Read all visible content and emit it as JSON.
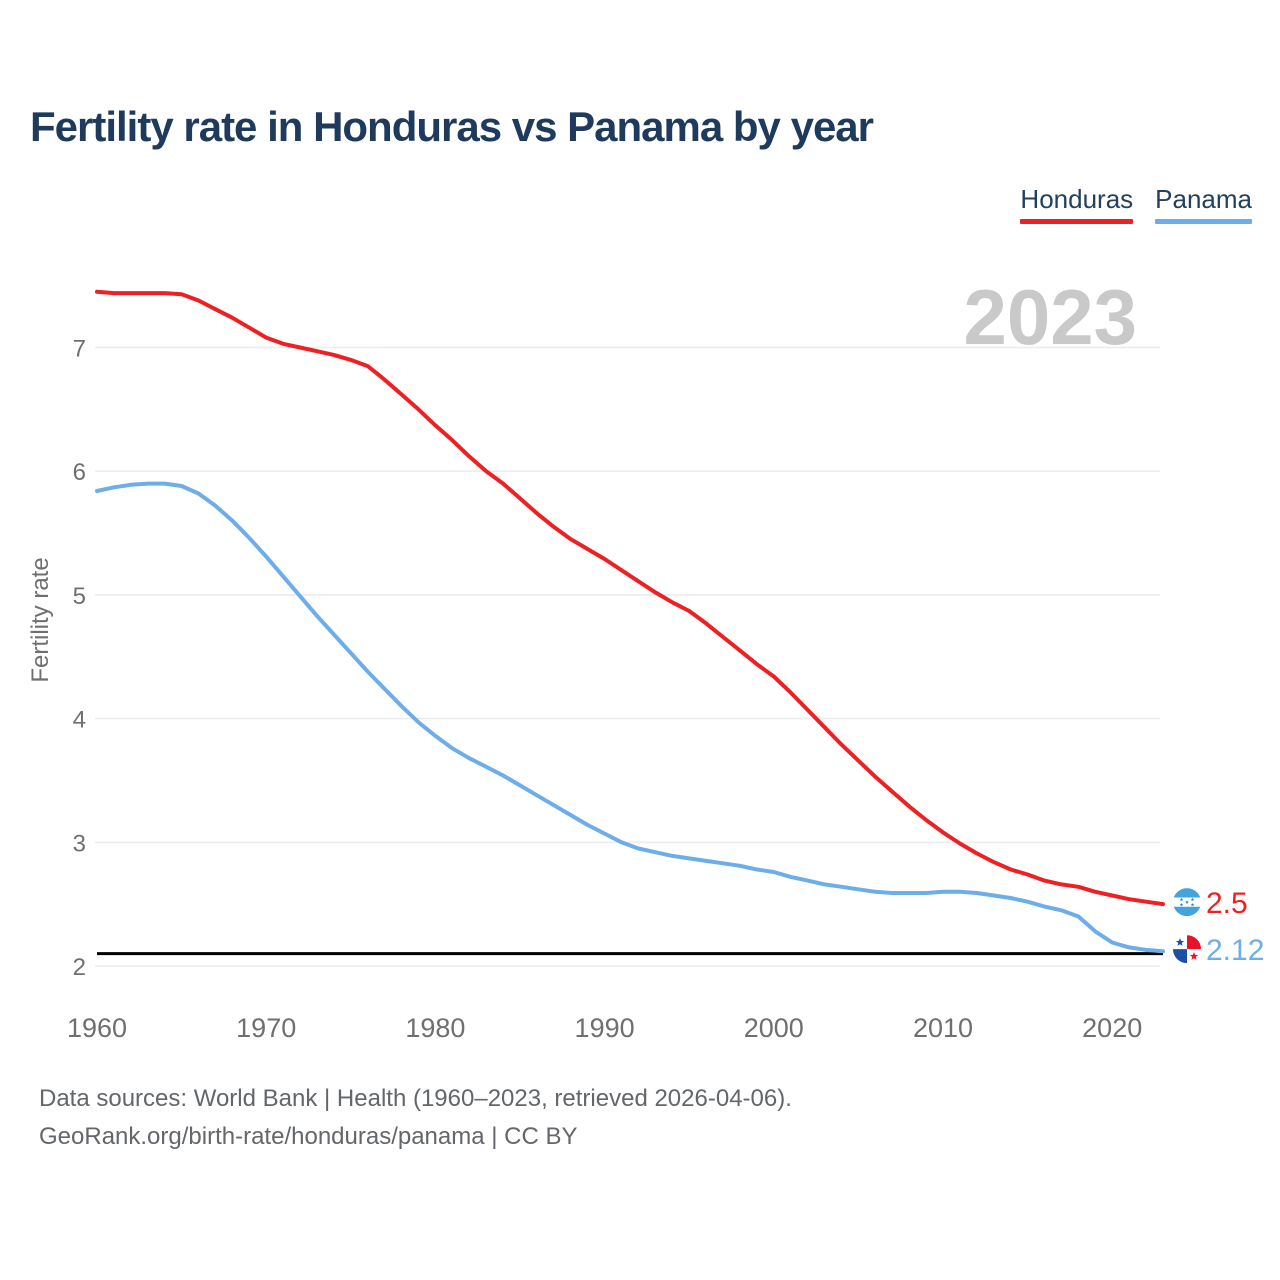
{
  "title": "Fertility rate in Honduras vs Panama by year",
  "watermark": "2023",
  "legend": [
    {
      "label": "Honduras",
      "color": "#ed2124"
    },
    {
      "label": "Panama",
      "color": "#6dade8"
    }
  ],
  "end_labels": [
    {
      "value": "2.5",
      "color": "#ed2124",
      "flag": "honduras-flag"
    },
    {
      "value": "2.12",
      "color": "#6dade8",
      "flag": "panama-flag"
    }
  ],
  "replacement_line": {
    "value": 2.1,
    "color": "#000000"
  },
  "chart_data": {
    "type": "line",
    "title": "Fertility rate in Honduras vs Panama by year",
    "xlabel": "",
    "ylabel": "Fertility rate",
    "ylim": [
      2,
      7.7
    ],
    "yticks": [
      2,
      3,
      4,
      5,
      6,
      7
    ],
    "xticks": [
      1960,
      1970,
      1980,
      1990,
      2000,
      2010,
      2020
    ],
    "grid": "horizontal",
    "legend_position": "top-right",
    "x": [
      1960,
      1961,
      1962,
      1963,
      1964,
      1965,
      1966,
      1967,
      1968,
      1969,
      1970,
      1971,
      1972,
      1973,
      1974,
      1975,
      1976,
      1977,
      1978,
      1979,
      1980,
      1981,
      1982,
      1983,
      1984,
      1985,
      1986,
      1987,
      1988,
      1989,
      1990,
      1991,
      1992,
      1993,
      1994,
      1995,
      1996,
      1997,
      1998,
      1999,
      2000,
      2001,
      2002,
      2003,
      2004,
      2005,
      2006,
      2007,
      2008,
      2009,
      2010,
      2011,
      2012,
      2013,
      2014,
      2015,
      2016,
      2017,
      2018,
      2019,
      2020,
      2021,
      2022,
      2023
    ],
    "series": [
      {
        "name": "Honduras",
        "color": "#ed2124",
        "values": [
          7.45,
          7.44,
          7.44,
          7.44,
          7.44,
          7.43,
          7.38,
          7.31,
          7.24,
          7.16,
          7.08,
          7.03,
          7.0,
          6.97,
          6.94,
          6.9,
          6.85,
          6.74,
          6.62,
          6.5,
          6.37,
          6.25,
          6.12,
          6.0,
          5.9,
          5.78,
          5.66,
          5.55,
          5.45,
          5.37,
          5.29,
          5.2,
          5.11,
          5.02,
          4.94,
          4.87,
          4.77,
          4.66,
          4.55,
          4.44,
          4.34,
          4.21,
          4.07,
          3.93,
          3.79,
          3.66,
          3.53,
          3.41,
          3.29,
          3.18,
          3.08,
          2.99,
          2.91,
          2.84,
          2.78,
          2.74,
          2.69,
          2.66,
          2.64,
          2.6,
          2.57,
          2.54,
          2.52,
          2.5
        ]
      },
      {
        "name": "Panama",
        "color": "#6dade8",
        "values": [
          5.84,
          5.87,
          5.89,
          5.9,
          5.9,
          5.88,
          5.82,
          5.72,
          5.6,
          5.46,
          5.31,
          5.15,
          4.99,
          4.83,
          4.68,
          4.53,
          4.38,
          4.24,
          4.1,
          3.97,
          3.86,
          3.76,
          3.68,
          3.61,
          3.54,
          3.46,
          3.38,
          3.3,
          3.22,
          3.14,
          3.07,
          3.0,
          2.95,
          2.92,
          2.89,
          2.87,
          2.85,
          2.83,
          2.81,
          2.78,
          2.76,
          2.72,
          2.69,
          2.66,
          2.64,
          2.62,
          2.6,
          2.59,
          2.59,
          2.59,
          2.6,
          2.6,
          2.59,
          2.57,
          2.55,
          2.52,
          2.48,
          2.45,
          2.4,
          2.28,
          2.19,
          2.15,
          2.13,
          2.12
        ]
      }
    ]
  },
  "footer": {
    "line1": "Data sources: World Bank | Health (1960–2023, retrieved 2026-04-06).",
    "line2": "GeoRank.org/birth-rate/honduras/panama | CC BY"
  }
}
